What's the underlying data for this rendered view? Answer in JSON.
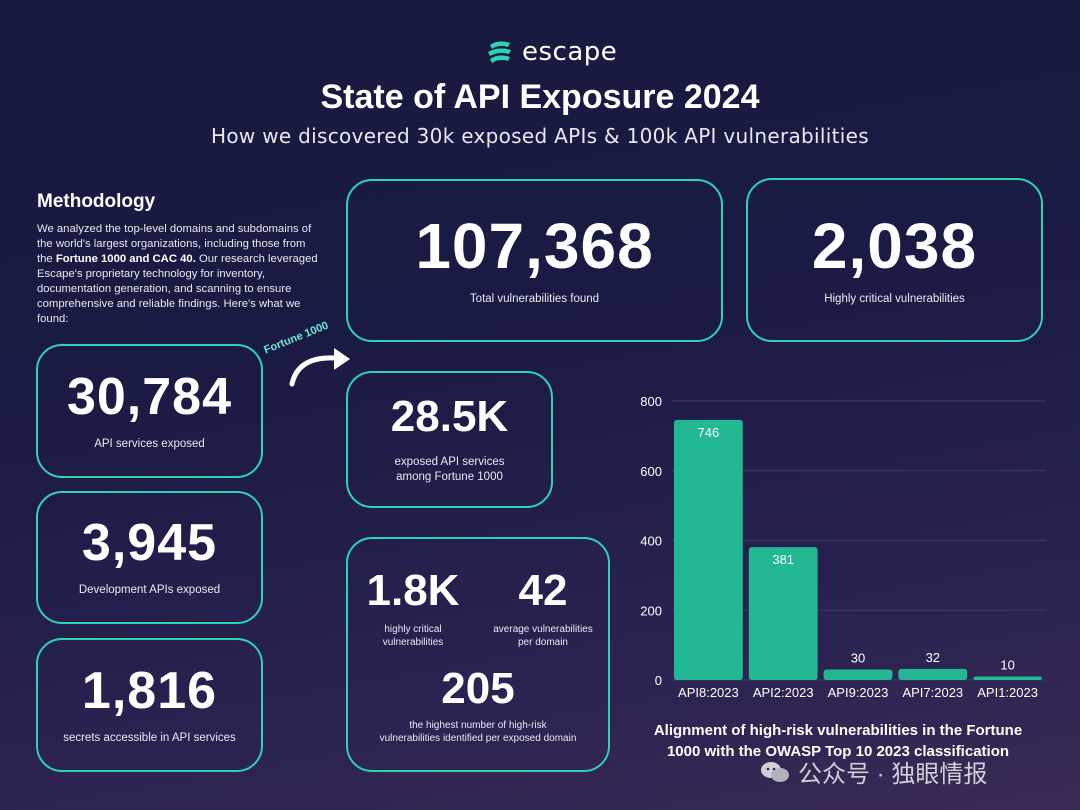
{
  "brand": {
    "logo_text": "escape"
  },
  "header": {
    "title": "State of API Exposure 2024",
    "subtitle": "How we discovered 30k exposed APIs & 100k API vulnerabilities"
  },
  "methodology": {
    "heading": "Methodology",
    "text_1": "We analyzed the top-level domains and subdomains of the world's largest organizations, including those from the ",
    "text_bold": "Fortune 1000 and CAC 40.",
    "text_2": " Our research leveraged Escape's proprietary technology for inventory, documentation generation, and scanning to ensure comprehensive and reliable findings. Here's what we found:"
  },
  "stats": {
    "total_vulns": {
      "value": "107,368",
      "label": "Total vulnerabilities found"
    },
    "critical_vulns": {
      "value": "2,038",
      "label": "Highly critical vulnerabilities"
    },
    "api_services": {
      "value": "30,784",
      "label": "API services exposed"
    },
    "dev_apis": {
      "value": "3,945",
      "label": "Development APIs exposed"
    },
    "secrets": {
      "value": "1,816",
      "label": "secrets accessible in API services"
    }
  },
  "fortune": {
    "tag": "Fortune 1000",
    "exposed": {
      "value": "28.5K",
      "label_1": "exposed API services",
      "label_2": "among Fortune 1000"
    },
    "critical": {
      "value": "1.8K",
      "label_1": "highly critical",
      "label_2": "vulnerabilities"
    },
    "average": {
      "value": "42",
      "label_1": "average vulnerabilities",
      "label_2": "per domain"
    },
    "highest": {
      "value": "205",
      "label_1": "the highest number of high-risk",
      "label_2": "vulnerabilities identified per exposed domain"
    }
  },
  "chart_data": {
    "type": "bar",
    "categories": [
      "API8:2023",
      "API2:2023",
      "API9:2023",
      "API7:2023",
      "API1:2023"
    ],
    "values": [
      746,
      381,
      30,
      32,
      10
    ],
    "ylim": [
      0,
      800
    ],
    "yticks": [
      "0",
      "200",
      "400",
      "600",
      "800"
    ],
    "title_1": "Alignment of high-risk vulnerabilities in the Fortune",
    "title_2": "1000 with the OWASP Top 10 2023 classification",
    "bar_color": "#22b894"
  },
  "watermark": {
    "text": "公众号 · 独眼情报"
  },
  "colors": {
    "accent": "#2fd3b4",
    "background": "#1b1b45"
  }
}
